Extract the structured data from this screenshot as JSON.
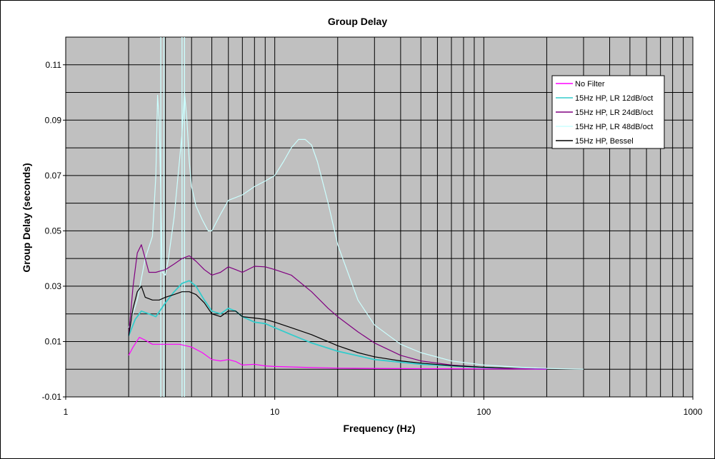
{
  "chart_data": {
    "type": "line",
    "title": "Group Delay",
    "xlabel": "Frequency (Hz)",
    "ylabel": "Group Delay (seconds)",
    "xscale": "log",
    "xlim": [
      1,
      1000
    ],
    "ylim": [
      -0.01,
      0.12
    ],
    "xticks": [
      1,
      10,
      100,
      1000
    ],
    "xtick_labels": [
      "1",
      "10",
      "100",
      "1000"
    ],
    "yticks": [
      -0.01,
      0.01,
      0.03,
      0.05,
      0.07,
      0.09,
      0.11
    ],
    "ytick_labels": [
      "-0.01",
      "0.01",
      "0.03",
      "0.05",
      "0.07",
      "0.09",
      "0.11"
    ],
    "grid": true,
    "plot_background": "#c0c0c0",
    "legend_position": "top-right",
    "series": [
      {
        "name": "No Filter",
        "color": "#ff00ff",
        "x": [
          2,
          2.1,
          2.25,
          2.4,
          2.6,
          3,
          3.5,
          4,
          4.5,
          5,
          5.5,
          6,
          6.5,
          7,
          8,
          9,
          10,
          15,
          20,
          30,
          50,
          100,
          150,
          200
        ],
        "y": [
          0.005,
          0.008,
          0.0115,
          0.0105,
          0.009,
          0.009,
          0.009,
          0.008,
          0.006,
          0.0035,
          0.003,
          0.0035,
          0.0028,
          0.0015,
          0.0018,
          0.0012,
          0.001,
          0.0006,
          0.0004,
          0.0003,
          0.0002,
          0.0001,
          0.0001,
          0.0
        ]
      },
      {
        "name": "15Hz HP, LR 12dB/oct",
        "color": "#33cccc",
        "x": [
          2,
          2.15,
          2.3,
          2.5,
          2.7,
          3,
          3.3,
          3.6,
          3.9,
          4.2,
          4.6,
          5,
          5.5,
          6,
          6.5,
          7,
          8,
          9,
          10,
          12,
          15,
          20,
          30,
          50,
          100,
          150,
          200
        ],
        "y": [
          0.012,
          0.018,
          0.021,
          0.02,
          0.019,
          0.024,
          0.028,
          0.031,
          0.032,
          0.03,
          0.025,
          0.021,
          0.02,
          0.022,
          0.021,
          0.019,
          0.017,
          0.0165,
          0.015,
          0.0125,
          0.0095,
          0.0065,
          0.0035,
          0.0018,
          0.0006,
          0.0002,
          0.0
        ]
      },
      {
        "name": "15Hz HP, LR 24dB/oct",
        "color": "#800080",
        "x": [
          2,
          2.1,
          2.2,
          2.3,
          2.4,
          2.5,
          2.7,
          3,
          3.3,
          3.6,
          3.9,
          4.2,
          4.6,
          5,
          5.5,
          6,
          6.5,
          7,
          8,
          9,
          10,
          12,
          15,
          18,
          20,
          25,
          30,
          40,
          50,
          70,
          100,
          150,
          200
        ],
        "y": [
          0.012,
          0.03,
          0.042,
          0.045,
          0.04,
          0.035,
          0.035,
          0.036,
          0.038,
          0.04,
          0.041,
          0.039,
          0.036,
          0.034,
          0.035,
          0.037,
          0.036,
          0.035,
          0.0372,
          0.037,
          0.036,
          0.034,
          0.028,
          0.022,
          0.019,
          0.0135,
          0.0095,
          0.005,
          0.003,
          0.0015,
          0.0007,
          0.0002,
          0.0
        ]
      },
      {
        "name": "15Hz HP, LR 48dB/oct",
        "color": "#ccffff",
        "x": [
          2,
          2.2,
          2.4,
          2.6,
          2.7,
          2.75,
          2.8,
          2.9,
          3,
          3.1,
          3.3,
          3.6,
          3.7,
          3.8,
          3.9,
          4,
          4.2,
          4.5,
          4.8,
          5,
          5.5,
          6,
          7,
          8,
          9,
          10,
          11,
          12,
          13,
          14,
          15,
          16,
          18,
          20,
          25,
          30,
          40,
          50,
          70,
          100,
          150,
          200,
          300
        ],
        "y": [
          0.015,
          0.025,
          0.04,
          0.048,
          0.07,
          0.099,
          0.09,
          0.035,
          0.034,
          0.04,
          0.055,
          0.085,
          0.1,
          0.09,
          0.075,
          0.066,
          0.059,
          0.054,
          0.05,
          0.05,
          0.056,
          0.061,
          0.063,
          0.066,
          0.068,
          0.07,
          0.075,
          0.08,
          0.083,
          0.083,
          0.081,
          0.075,
          0.06,
          0.045,
          0.025,
          0.016,
          0.009,
          0.006,
          0.003,
          0.0015,
          0.0007,
          0.0003,
          0.0
        ]
      },
      {
        "name": "15Hz HP, Bessel",
        "color": "#000000",
        "x": [
          2,
          2.1,
          2.2,
          2.3,
          2.4,
          2.6,
          2.8,
          3,
          3.3,
          3.6,
          3.9,
          4.2,
          4.6,
          5,
          5.5,
          6,
          6.5,
          7,
          8,
          9,
          10,
          12,
          15,
          20,
          25,
          30,
          40,
          50,
          70,
          100,
          150,
          200
        ],
        "y": [
          0.012,
          0.022,
          0.028,
          0.03,
          0.026,
          0.025,
          0.025,
          0.026,
          0.027,
          0.028,
          0.028,
          0.027,
          0.024,
          0.02,
          0.019,
          0.021,
          0.021,
          0.019,
          0.0185,
          0.018,
          0.017,
          0.015,
          0.0125,
          0.0085,
          0.006,
          0.0045,
          0.003,
          0.0022,
          0.0013,
          0.0007,
          0.0002,
          0.0
        ]
      }
    ],
    "extra_spikes": [
      {
        "series": "15Hz HP, LR 48dB/oct",
        "x": 2.85,
        "y_from": -0.01,
        "y_to": 0.12
      },
      {
        "series": "15Hz HP, LR 48dB/oct",
        "x": 2.95,
        "y_from": -0.01,
        "y_to": 0.12
      },
      {
        "series": "15Hz HP, LR 48dB/oct",
        "x": 3.6,
        "y_from": -0.01,
        "y_to": 0.12
      },
      {
        "series": "15Hz HP, LR 48dB/oct",
        "x": 3.7,
        "y_from": -0.01,
        "y_to": 0.12
      }
    ]
  }
}
